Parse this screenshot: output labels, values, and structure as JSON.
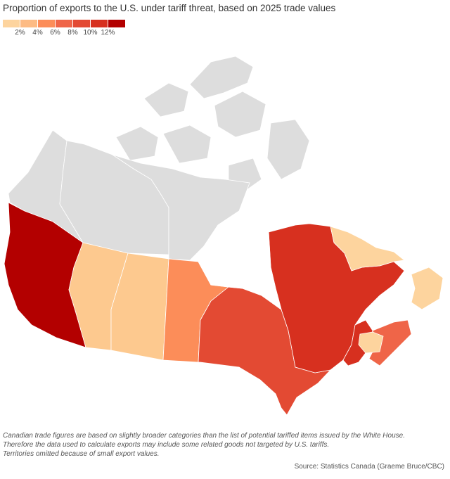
{
  "title": "Proportion of exports to the U.S. under tariff threat, based on 2025 trade values",
  "legend": {
    "colors": [
      "#fdd49e",
      "#fdbb84",
      "#fc8d59",
      "#ef6548",
      "#e34a33",
      "#d7301f",
      "#b30000"
    ],
    "ticks": [
      "2%",
      "4%",
      "6%",
      "8%",
      "10%",
      "12%"
    ]
  },
  "map": {
    "no_data_color": "#dddddd",
    "regions": [
      {
        "name": "Yukon",
        "color": "#dddddd"
      },
      {
        "name": "Northwest Territories",
        "color": "#dddddd"
      },
      {
        "name": "Nunavut",
        "color": "#dddddd"
      },
      {
        "name": "British Columbia",
        "color": "#b30000"
      },
      {
        "name": "Alberta",
        "color": "#fdc98f"
      },
      {
        "name": "Saskatchewan",
        "color": "#fdc98f"
      },
      {
        "name": "Manitoba",
        "color": "#fc8d59"
      },
      {
        "name": "Ontario",
        "color": "#e34a33"
      },
      {
        "name": "Quebec",
        "color": "#d7301f"
      },
      {
        "name": "Newfoundland and Labrador",
        "color": "#fdd49e"
      },
      {
        "name": "New Brunswick",
        "color": "#d7301f"
      },
      {
        "name": "Nova Scotia",
        "color": "#ef6548"
      },
      {
        "name": "Prince Edward Island",
        "color": "#fdd49e"
      }
    ]
  },
  "footnote": [
    "Canadian trade figures are based on slightly broader categories than the list of potential tariffed items issued by the White House.",
    "Therefore the data used to calculate exports may include some related goods not targeted by U.S. tariffs.",
    "Territories omitted because of small export values."
  ],
  "source": "Source: Statistics Canada (Graeme Bruce/CBC)"
}
